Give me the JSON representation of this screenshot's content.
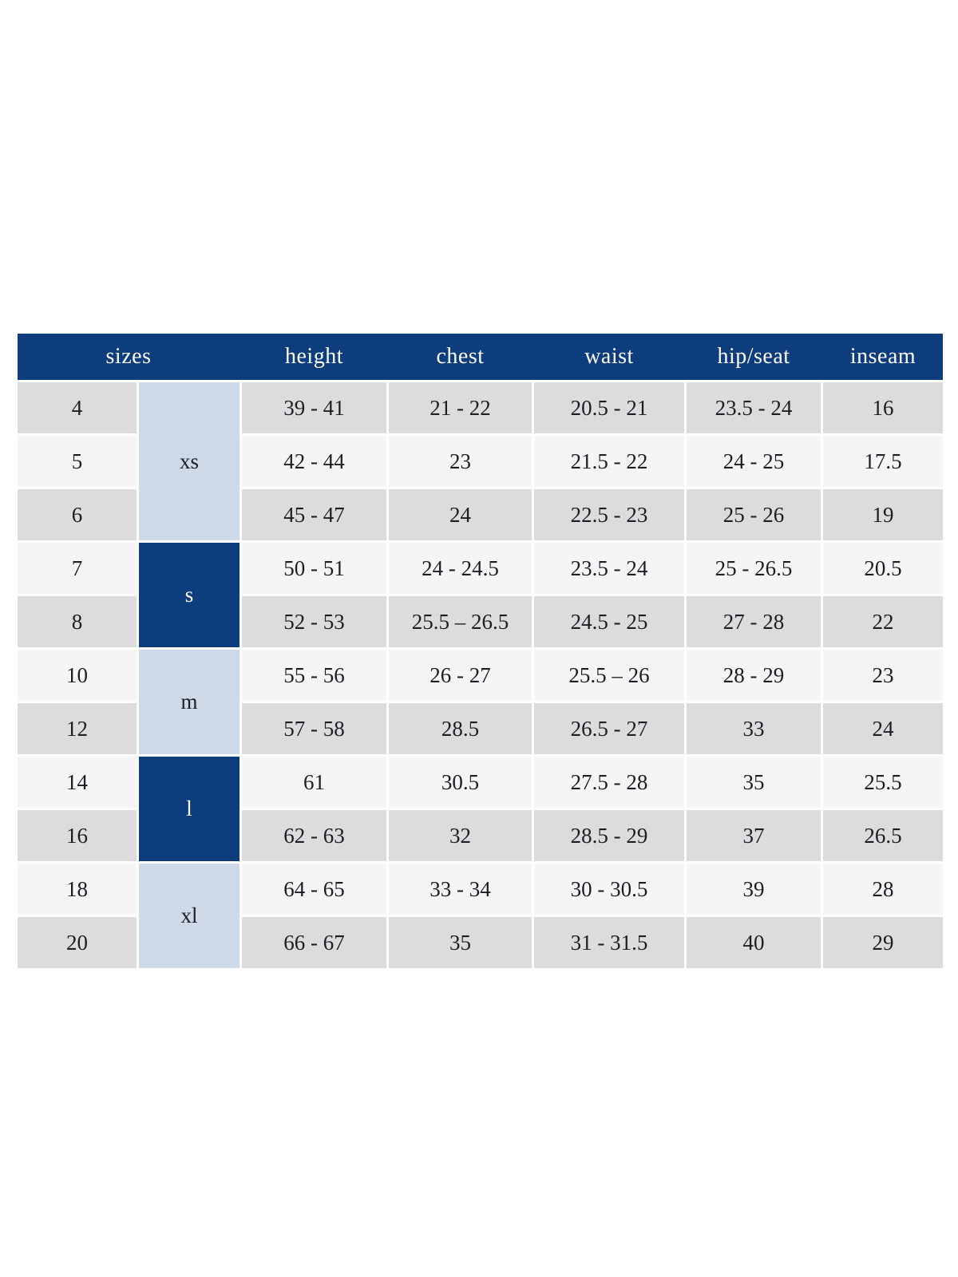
{
  "colors": {
    "header_navy": "#0d3d7c",
    "group_light_blue": "#cdd9e6",
    "row_gray": "#dcdcdc",
    "row_light": "#f5f5f5",
    "header_text": "#ffffff",
    "body_text": "#1c1e26",
    "page_background": "#ffffff"
  },
  "table": {
    "headers": {
      "sizes": "sizes",
      "height": "height",
      "chest": "chest",
      "waist": "waist",
      "hip_seat": "hip/seat",
      "inseam": "inseam"
    },
    "groups": [
      {
        "label": "xs",
        "rows": [
          "4",
          "5",
          "6"
        ],
        "style": "light"
      },
      {
        "label": "s",
        "rows": [
          "7",
          "8"
        ],
        "style": "dark"
      },
      {
        "label": "m",
        "rows": [
          "10",
          "12"
        ],
        "style": "light"
      },
      {
        "label": "l",
        "rows": [
          "14",
          "16"
        ],
        "style": "dark"
      },
      {
        "label": "xl",
        "rows": [
          "18",
          "20"
        ],
        "style": "light"
      }
    ],
    "rows": [
      {
        "size": "4",
        "height": "39 - 41",
        "chest": "21 - 22",
        "waist": "20.5 - 21",
        "hip_seat": "23.5 - 24",
        "inseam": "16"
      },
      {
        "size": "5",
        "height": "42 - 44",
        "chest": "23",
        "waist": "21.5 - 22",
        "hip_seat": "24 - 25",
        "inseam": "17.5"
      },
      {
        "size": "6",
        "height": "45 - 47",
        "chest": "24",
        "waist": "22.5 - 23",
        "hip_seat": "25 - 26",
        "inseam": "19"
      },
      {
        "size": "7",
        "height": "50 - 51",
        "chest": "24 - 24.5",
        "waist": "23.5 - 24",
        "hip_seat": "25 - 26.5",
        "inseam": "20.5"
      },
      {
        "size": "8",
        "height": "52 - 53",
        "chest": "25.5 – 26.5",
        "waist": "24.5 - 25",
        "hip_seat": "27 - 28",
        "inseam": "22"
      },
      {
        "size": "10",
        "height": "55 - 56",
        "chest": "26 - 27",
        "waist": "25.5 – 26",
        "hip_seat": "28 - 29",
        "inseam": "23"
      },
      {
        "size": "12",
        "height": "57 - 58",
        "chest": "28.5",
        "waist": "26.5 - 27",
        "hip_seat": "33",
        "inseam": "24"
      },
      {
        "size": "14",
        "height": "61",
        "chest": "30.5",
        "waist": "27.5 - 28",
        "hip_seat": "35",
        "inseam": "25.5"
      },
      {
        "size": "16",
        "height": "62 - 63",
        "chest": "32",
        "waist": "28.5 - 29",
        "hip_seat": "37",
        "inseam": "26.5"
      },
      {
        "size": "18",
        "height": "64 - 65",
        "chest": "33 - 34",
        "waist": "30 - 30.5",
        "hip_seat": "39",
        "inseam": "28"
      },
      {
        "size": "20",
        "height": "66 - 67",
        "chest": "35",
        "waist": "31 - 31.5",
        "hip_seat": "40",
        "inseam": "29"
      }
    ]
  }
}
